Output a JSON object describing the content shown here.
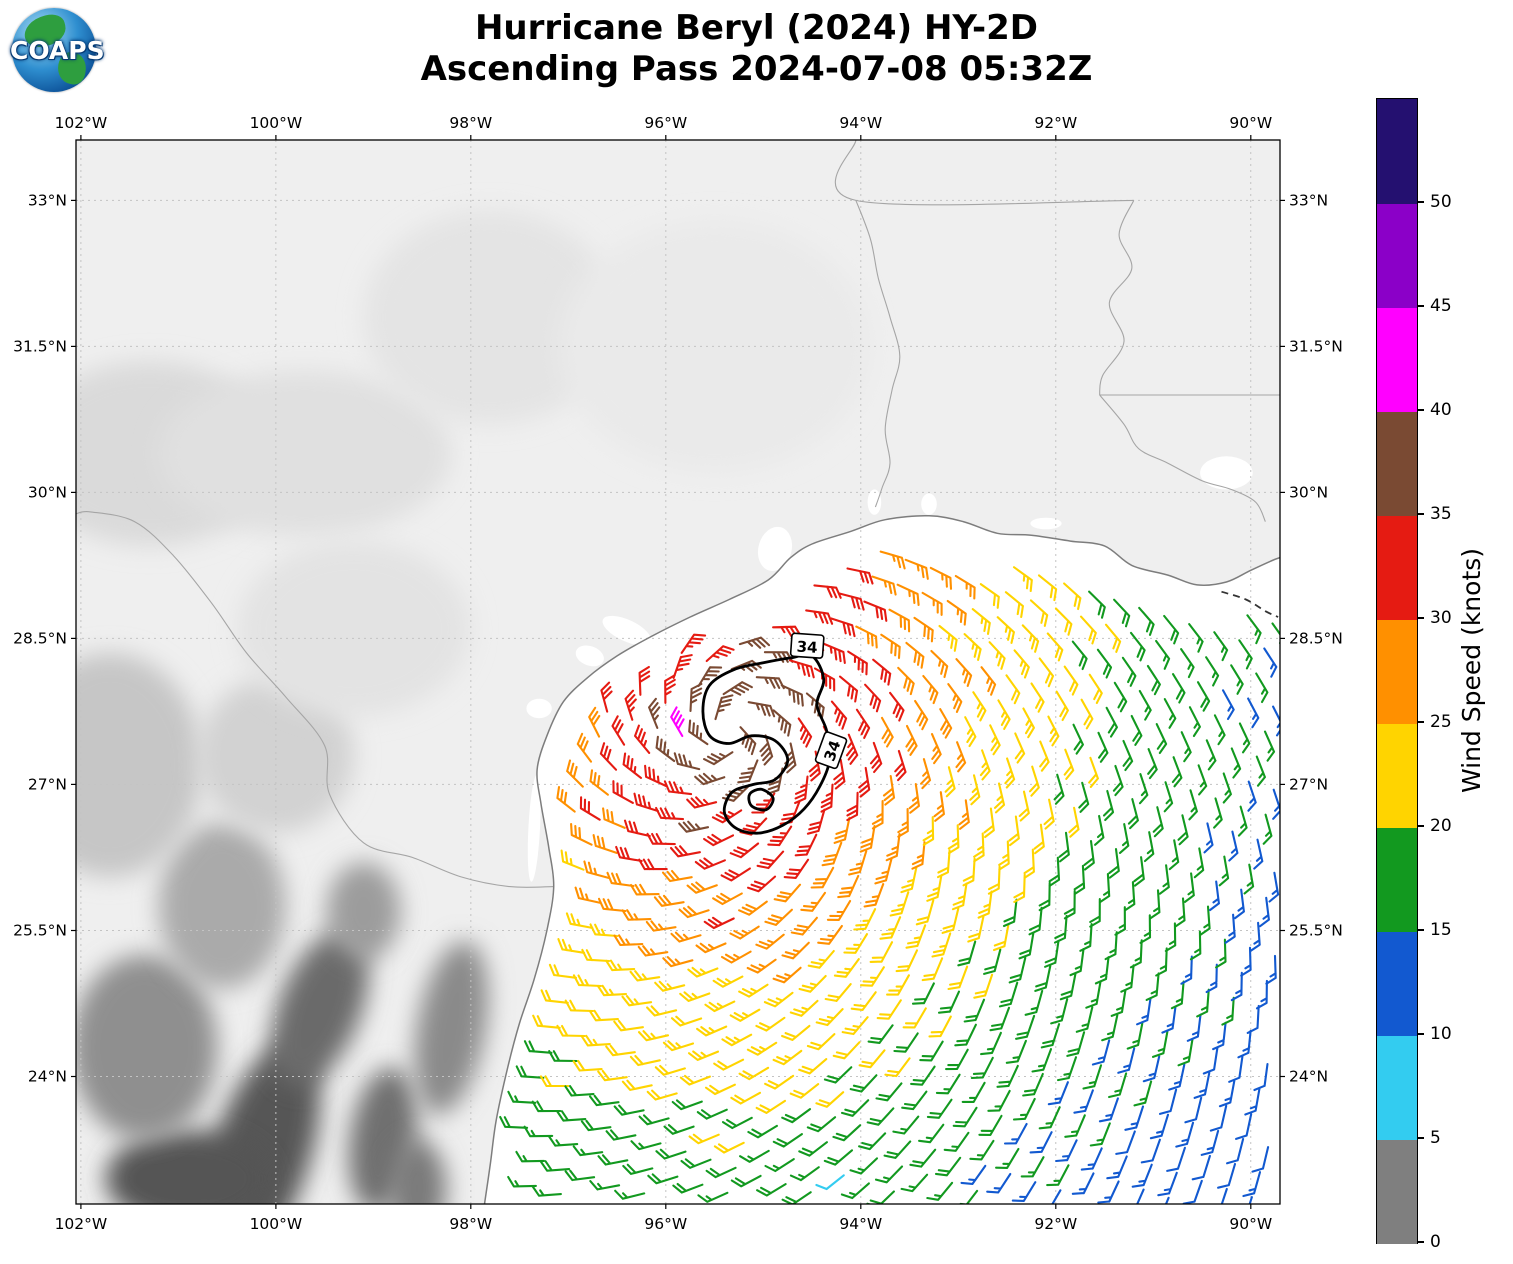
{
  "header": {
    "logo_text": "COAPS",
    "title_line1": "Hurricane Beryl (2024) HY-2D",
    "title_line2": "Ascending Pass 2024-07-08 05:32Z"
  },
  "axes": {
    "extent": {
      "lon_min": -102.05,
      "lon_max": -89.7,
      "lat_min": 22.69,
      "lat_max": 33.62
    },
    "lon_ticks": [
      {
        "value": -102,
        "label": "102°W"
      },
      {
        "value": -100,
        "label": "100°W"
      },
      {
        "value": -98,
        "label": "98°W"
      },
      {
        "value": -96,
        "label": "96°W"
      },
      {
        "value": -94,
        "label": "94°W"
      },
      {
        "value": -92,
        "label": "92°W"
      },
      {
        "value": -90,
        "label": "90°W"
      }
    ],
    "lat_ticks": [
      {
        "value": 33,
        "label": "33°N"
      },
      {
        "value": 31.5,
        "label": "31.5°N"
      },
      {
        "value": 30,
        "label": "30°N"
      },
      {
        "value": 28.5,
        "label": "28.5°N"
      },
      {
        "value": 27,
        "label": "27°N"
      },
      {
        "value": 25.5,
        "label": "25.5°N"
      },
      {
        "value": 24,
        "label": "24°N"
      }
    ]
  },
  "colorbar": {
    "label": "Wind Speed (knots)",
    "tick_values": [
      0,
      5,
      10,
      15,
      20,
      25,
      30,
      35,
      40,
      45,
      50
    ],
    "value_range": [
      0,
      55
    ],
    "bin_size": 5,
    "colors": [
      "#7f7f7f",
      "#33ccf0",
      "#1259d0",
      "#12991f",
      "#ffd400",
      "#ff9000",
      "#e51b12",
      "#7a4a33",
      "#ff00ff",
      "#8b00c8",
      "#241070"
    ]
  },
  "chart_data": {
    "type": "map-windbarbs",
    "title": "Hurricane Beryl (2024) HY-2D — Ascending Pass 2024-07-08 05:32Z",
    "satellite": "HY-2D",
    "pass_type": "Ascending",
    "pass_time_utc": "2024-07-08 05:32Z",
    "units": "knots",
    "legend_label": "Wind Speed (knots)",
    "storm_center": {
      "lon": -95.35,
      "lat": 27.55
    },
    "max_wind_knots": 42,
    "wind_radius_contour_knots": 34,
    "contour_label": "34",
    "inflow_factor": 0.45,
    "radial_speed_profile": [
      [
        0,
        38
      ],
      [
        0.5,
        36
      ],
      [
        1.0,
        32.5
      ],
      [
        1.5,
        29
      ],
      [
        2.1,
        24.5
      ],
      [
        2.9,
        21
      ],
      [
        3.6,
        18
      ],
      [
        4.6,
        15.5
      ],
      [
        5.2,
        14
      ],
      [
        6.2,
        12
      ],
      [
        8,
        9
      ]
    ],
    "swath": {
      "origin": [
        -94.2,
        26.4
      ],
      "along_azimuth_deg": 18,
      "spacing_deg": 0.27,
      "u_range": [
        -18,
        17
      ],
      "v_range": [
        -11,
        22
      ],
      "coast_buffer_deg": 0.28
    },
    "special_obs": [
      {
        "lon": -95.78,
        "lat": 27.55,
        "knots": 42
      },
      {
        "lon": -94.06,
        "lat": 22.86,
        "knots": 8
      }
    ],
    "contour_34kt": {
      "outer": [
        [
          -95.55,
          28.02
        ],
        [
          -95.3,
          28.18
        ],
        [
          -95.0,
          28.25
        ],
        [
          -94.72,
          28.3
        ],
        [
          -94.5,
          28.32
        ],
        [
          -94.38,
          28.08
        ],
        [
          -94.45,
          27.82
        ],
        [
          -94.35,
          27.55
        ],
        [
          -94.32,
          27.25
        ],
        [
          -94.42,
          26.98
        ],
        [
          -94.58,
          26.75
        ],
        [
          -94.8,
          26.58
        ],
        [
          -95.05,
          26.5
        ],
        [
          -95.28,
          26.55
        ],
        [
          -95.4,
          26.72
        ],
        [
          -95.32,
          26.92
        ],
        [
          -95.1,
          27.0
        ],
        [
          -94.88,
          27.05
        ],
        [
          -94.75,
          27.25
        ],
        [
          -94.88,
          27.45
        ],
        [
          -95.12,
          27.5
        ],
        [
          -95.35,
          27.42
        ],
        [
          -95.55,
          27.5
        ],
        [
          -95.62,
          27.75
        ]
      ],
      "inner": [
        [
          -95.02,
          26.95
        ],
        [
          -94.9,
          26.86
        ],
        [
          -94.97,
          26.74
        ],
        [
          -95.12,
          26.78
        ],
        [
          -95.14,
          26.9
        ]
      ],
      "labels": [
        {
          "lon": -94.55,
          "lat": 28.42,
          "rot": 4
        },
        {
          "lon": -94.3,
          "lat": 27.35,
          "rot": -70
        }
      ]
    }
  },
  "geo": {
    "coast": [
      [
        -97.86,
        22.69
      ],
      [
        -97.8,
        23.1
      ],
      [
        -97.74,
        23.55
      ],
      [
        -97.62,
        24.1
      ],
      [
        -97.5,
        24.55
      ],
      [
        -97.35,
        25.0
      ],
      [
        -97.22,
        25.5
      ],
      [
        -97.15,
        25.95
      ],
      [
        -97.2,
        26.35
      ],
      [
        -97.28,
        26.8
      ],
      [
        -97.32,
        27.15
      ],
      [
        -97.22,
        27.5
      ],
      [
        -97.05,
        27.85
      ],
      [
        -96.8,
        28.1
      ],
      [
        -96.5,
        28.32
      ],
      [
        -96.15,
        28.52
      ],
      [
        -95.75,
        28.72
      ],
      [
        -95.35,
        28.9
      ],
      [
        -94.95,
        29.1
      ],
      [
        -94.72,
        29.33
      ],
      [
        -94.5,
        29.47
      ],
      [
        -94.1,
        29.6
      ],
      [
        -93.75,
        29.72
      ],
      [
        -93.3,
        29.76
      ],
      [
        -92.95,
        29.7
      ],
      [
        -92.6,
        29.58
      ],
      [
        -92.25,
        29.56
      ],
      [
        -91.85,
        29.5
      ],
      [
        -91.5,
        29.45
      ],
      [
        -91.22,
        29.25
      ],
      [
        -90.85,
        29.15
      ],
      [
        -90.55,
        29.05
      ],
      [
        -90.25,
        29.08
      ],
      [
        -90.0,
        29.2
      ],
      [
        -89.78,
        29.3
      ],
      [
        -89.7,
        29.33
      ]
    ],
    "dashed_coast": [
      [
        -90.3,
        28.98
      ],
      [
        -90.05,
        28.9
      ],
      [
        -89.85,
        28.78
      ],
      [
        -89.72,
        28.72
      ]
    ],
    "borders": [
      [
        [
          -94.05,
          33.62
        ],
        [
          -94.05,
          33.0
        ],
        [
          -91.2,
          33.0
        ]
      ],
      [
        [
          -94.05,
          33.0
        ],
        [
          -93.9,
          32.6
        ],
        [
          -93.82,
          32.2
        ],
        [
          -93.7,
          31.8
        ],
        [
          -93.6,
          31.4
        ],
        [
          -93.68,
          31.05
        ],
        [
          -93.75,
          30.65
        ],
        [
          -93.7,
          30.3
        ],
        [
          -93.78,
          30.05
        ],
        [
          -93.85,
          29.85
        ]
      ],
      [
        [
          -91.2,
          33.0
        ],
        [
          -91.35,
          32.65
        ],
        [
          -91.22,
          32.3
        ],
        [
          -91.45,
          31.95
        ],
        [
          -91.3,
          31.55
        ],
        [
          -91.52,
          31.2
        ],
        [
          -91.55,
          31.0
        ]
      ],
      [
        [
          -91.55,
          31.0
        ],
        [
          -89.7,
          31.0
        ]
      ],
      [
        [
          -97.15,
          25.95
        ],
        [
          -97.6,
          25.95
        ],
        [
          -98.1,
          26.05
        ],
        [
          -98.6,
          26.25
        ],
        [
          -99.1,
          26.4
        ],
        [
          -99.45,
          26.9
        ],
        [
          -99.5,
          27.4
        ],
        [
          -99.9,
          27.9
        ],
        [
          -100.3,
          28.35
        ],
        [
          -100.65,
          28.85
        ],
        [
          -101.05,
          29.35
        ],
        [
          -101.45,
          29.7
        ],
        [
          -101.9,
          29.8
        ],
        [
          -102.05,
          29.78
        ]
      ],
      [
        [
          -91.55,
          31.0
        ],
        [
          -91.3,
          30.7
        ],
        [
          -91.15,
          30.45
        ],
        [
          -90.85,
          30.3
        ],
        [
          -90.5,
          30.12
        ],
        [
          -90.2,
          30.03
        ],
        [
          -89.95,
          29.9
        ],
        [
          -89.85,
          29.7
        ]
      ]
    ],
    "lakes": [
      [
        -94.88,
        29.42,
        0.17,
        0.23,
        15
      ],
      [
        -93.86,
        29.9,
        0.07,
        0.13,
        0
      ],
      [
        -93.3,
        29.88,
        0.08,
        0.11,
        0
      ],
      [
        -96.4,
        28.58,
        0.27,
        0.11,
        25
      ],
      [
        -96.78,
        28.32,
        0.15,
        0.1,
        20
      ],
      [
        -97.3,
        27.78,
        0.13,
        0.1,
        0
      ],
      [
        -97.35,
        26.55,
        0.06,
        0.55,
        3
      ],
      [
        -90.25,
        30.2,
        0.27,
        0.17,
        0
      ],
      [
        -92.1,
        29.68,
        0.16,
        0.06,
        0
      ]
    ],
    "terrain": [
      [
        -100.15,
        23.2,
        0.5,
        1.2,
        18,
        "#565656"
      ],
      [
        -99.55,
        24.7,
        0.42,
        0.85,
        22,
        "#6a6a6a"
      ],
      [
        -98.9,
        23.35,
        0.34,
        0.75,
        8,
        "#6f6f6f"
      ],
      [
        -98.55,
        22.85,
        0.3,
        0.5,
        0,
        "#7a7a7a"
      ],
      [
        -100.9,
        22.95,
        0.85,
        0.5,
        0,
        "#555555"
      ],
      [
        -101.35,
        24.3,
        0.75,
        0.95,
        0,
        "#8f8f8f"
      ],
      [
        -100.55,
        25.75,
        0.65,
        0.85,
        0,
        "#aaaaaa"
      ],
      [
        -101.7,
        27.2,
        0.95,
        1.15,
        0,
        "#c6c6c6"
      ],
      [
        -99.1,
        25.7,
        0.38,
        0.5,
        0,
        "#9c9c9c"
      ],
      [
        -98.2,
        24.5,
        0.35,
        0.9,
        10,
        "#8a8a8a"
      ],
      [
        -100.0,
        27.3,
        0.8,
        0.8,
        0,
        "#d2d2d2"
      ],
      [
        -101.3,
        30.4,
        1.3,
        0.95,
        0,
        "#dadada"
      ],
      [
        -99.7,
        30.4,
        1.5,
        0.85,
        0,
        "#e0e0e0"
      ],
      [
        -97.8,
        31.8,
        1.3,
        1.1,
        0,
        "#e4e4e4"
      ],
      [
        -95.5,
        31.5,
        1.6,
        1.3,
        0,
        "#eaeaea"
      ],
      [
        -99.2,
        28.6,
        1.2,
        0.9,
        0,
        "#e3e3e3"
      ]
    ]
  }
}
